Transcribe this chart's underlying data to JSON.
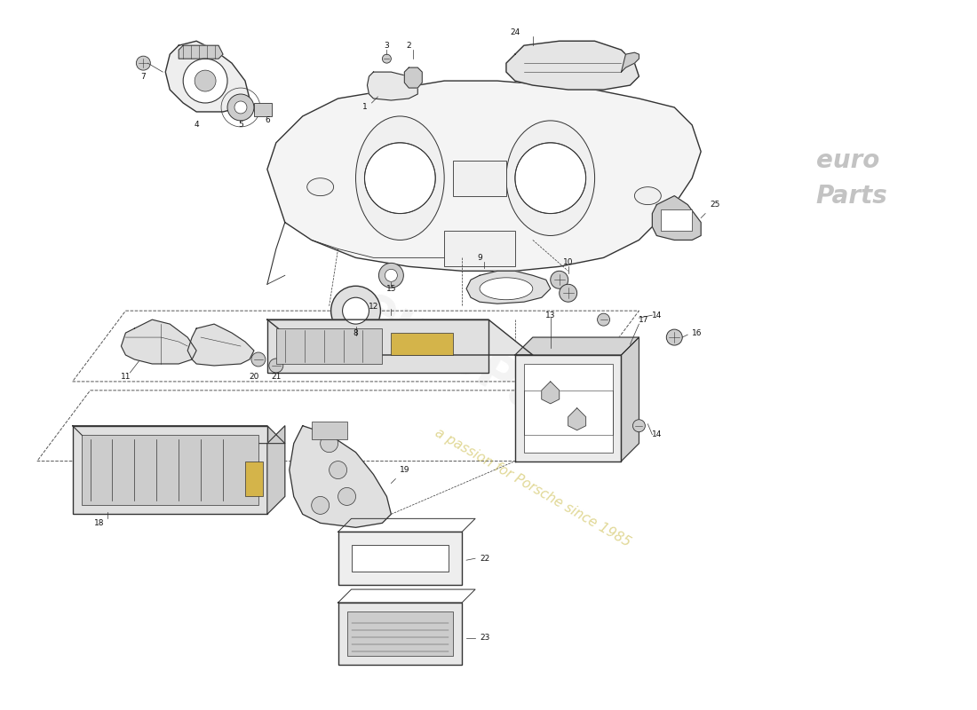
{
  "bg_color": "#ffffff",
  "line_color": "#333333",
  "gray_fill": "#e8e8e8",
  "dark_gray": "#cccccc",
  "light_gray": "#f0f0f0",
  "yellow_fill": "#d4b44a",
  "watermark1": "euro",
  "watermark2": "Parts",
  "watermark3": "a passion for Porsche since 1985",
  "figsize": [
    11.0,
    8.0
  ],
  "dpi": 100
}
